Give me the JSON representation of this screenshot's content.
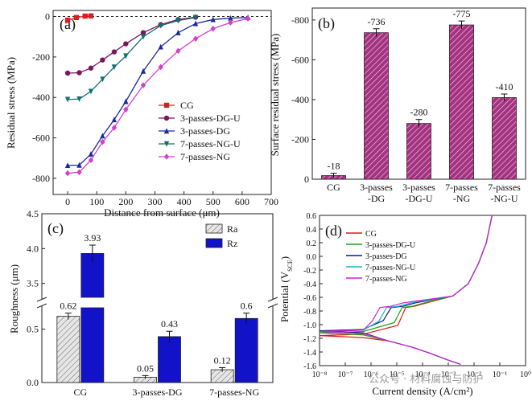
{
  "chart_data": [
    {
      "panel": "(a)",
      "type": "line",
      "xlabel": "Distance from surface (μm)",
      "ylabel": "Residual stress (MPa)",
      "xlim": [
        -50,
        700
      ],
      "ylim": [
        -880,
        30
      ],
      "xticks": [
        0,
        100,
        200,
        300,
        400,
        500,
        600,
        700
      ],
      "yticks": [
        0,
        -200,
        -400,
        -600,
        -800
      ],
      "xtick_labels": [
        "0",
        "100",
        "200",
        "300",
        "400",
        "500",
        "600",
        "700"
      ],
      "ytick_labels": [
        "0",
        "-200",
        "-400",
        "-600",
        "-800"
      ],
      "reference_line_y": 0,
      "legend_position": "bottom-left",
      "series": [
        {
          "name": "CG",
          "marker": "square",
          "color": "#d62020",
          "x": [
            0,
            30,
            60,
            80
          ],
          "y": [
            -18,
            -5,
            2,
            3
          ]
        },
        {
          "name": "3-passes-DG-U",
          "marker": "circle",
          "color": "#7a1560",
          "x": [
            0,
            40,
            80,
            120,
            160,
            200,
            260,
            320,
            380,
            440
          ],
          "y": [
            -280,
            -278,
            -255,
            -215,
            -175,
            -135,
            -80,
            -40,
            -15,
            -3
          ]
        },
        {
          "name": "3-passes-DG",
          "marker": "triangle-up",
          "color": "#1c2a99",
          "x": [
            0,
            40,
            80,
            120,
            160,
            200,
            260,
            320,
            380,
            440,
            500,
            560,
            620
          ],
          "y": [
            -736,
            -735,
            -680,
            -590,
            -510,
            -420,
            -270,
            -150,
            -80,
            -35,
            -15,
            -8,
            -5
          ]
        },
        {
          "name": "7-passes-NG-U",
          "marker": "triangle-down",
          "color": "#136f6f",
          "x": [
            0,
            40,
            80,
            120,
            160,
            200,
            260,
            320,
            380,
            440
          ],
          "y": [
            -410,
            -408,
            -370,
            -310,
            -250,
            -195,
            -100,
            -45,
            -20,
            -5
          ]
        },
        {
          "name": "7-passes-NG",
          "marker": "diamond",
          "color": "#d33fd3",
          "x": [
            0,
            40,
            80,
            120,
            160,
            200,
            260,
            320,
            380,
            440,
            500,
            560,
            620
          ],
          "y": [
            -775,
            -770,
            -710,
            -620,
            -550,
            -460,
            -340,
            -250,
            -170,
            -110,
            -60,
            -30,
            -10
          ]
        }
      ]
    },
    {
      "panel": "(b)",
      "type": "bar",
      "ylabel": "Surface residual stress (MPa)",
      "ylim": [
        0,
        -860
      ],
      "yticks": [
        0,
        -200,
        -400,
        -600,
        -800
      ],
      "ytick_labels": [
        "0",
        "-200",
        "-400",
        "-600",
        "-800"
      ],
      "categories": [
        "CG",
        "3-passes -DG",
        "3-passes -DG-U",
        "7-passes -NG",
        "7-passes -NG-U"
      ],
      "values": [
        -18,
        -736,
        -280,
        -775,
        -410
      ],
      "value_labels": [
        "-18",
        "-736",
        "-280",
        "-775",
        "-410"
      ],
      "errors": [
        12,
        20,
        20,
        20,
        18
      ],
      "bar_color": "#a4327f",
      "hatch": "diagonal"
    },
    {
      "panel": "(c)",
      "type": "bar",
      "ylabel": "Roughness (μm)",
      "broken_axis": true,
      "lower_ylim": [
        0,
        0.7
      ],
      "upper_ylim": [
        3.3,
        4.5
      ],
      "lower_yticks": [
        0.0,
        0.5
      ],
      "upper_yticks": [
        3.5,
        4.0,
        4.5
      ],
      "lower_ytick_labels": [
        "0.0",
        "0.5"
      ],
      "upper_ytick_labels": [
        "3.5",
        "4.0",
        "4.5"
      ],
      "categories": [
        "CG",
        "3-passes-DG",
        "7-passes-NG"
      ],
      "series": [
        {
          "name": "Ra",
          "values": [
            0.62,
            0.05,
            0.12
          ],
          "value_labels": [
            "0.62",
            "0.05",
            "0.12"
          ],
          "errors": [
            0.03,
            0.015,
            0.02
          ],
          "color": "#c8c8c8",
          "hatch": "diagonal"
        },
        {
          "name": "Rz",
          "values": [
            3.93,
            0.43,
            0.6
          ],
          "value_labels": [
            "3.93",
            "0.43",
            "0.6"
          ],
          "errors": [
            0.12,
            0.05,
            0.05
          ],
          "color": "#1212c8",
          "hatch": "none"
        }
      ],
      "legend_position": "top-right"
    },
    {
      "panel": "(d)",
      "type": "line",
      "xlabel": "Current density (A/cm²)",
      "ylabel": "Potential (V_SCE)",
      "xscale": "log",
      "xlim": [
        1e-08,
        1
      ],
      "ylim": [
        -1.6,
        0.6
      ],
      "xtick_labels": [
        "10⁻⁸",
        "10⁻⁷",
        "10⁻⁶",
        "10⁻⁵",
        "10⁻⁴",
        "10⁻³",
        "10⁻²",
        "10⁻¹",
        "10⁰"
      ],
      "ytick_labels": [
        "0.6",
        "0.4",
        "0.2",
        "0.0",
        "-0.2",
        "-0.4",
        "-0.6",
        "-0.8",
        "-1.0",
        "-1.2",
        "-1.4",
        "-1.6"
      ],
      "yticks": [
        0.6,
        0.4,
        0.2,
        0.0,
        -0.2,
        -0.4,
        -0.6,
        -0.8,
        -1.0,
        -1.2,
        -1.4,
        -1.6
      ],
      "legend_position": "top-left",
      "series": [
        {
          "name": "CG",
          "color": "#e21a1a",
          "ecorr": -1.16,
          "anodic_plateau_i": 2.2e-05,
          "passive_i": 5e-05
        },
        {
          "name": "3-passes-DG-U",
          "color": "#19a319",
          "ecorr": -1.12,
          "anodic_plateau_i": 1.6e-05,
          "passive_i": 4e-05
        },
        {
          "name": "3-passes-DG",
          "color": "#15157a",
          "ecorr": -1.09,
          "anodic_plateau_i": 6e-06,
          "passive_i": 1.8e-05
        },
        {
          "name": "7-passes-NG-U",
          "color": "#18b4c8",
          "ecorr": -1.1,
          "anodic_plateau_i": 4e-06,
          "passive_i": 1.2e-05
        },
        {
          "name": "7-passes-NG",
          "color": "#d11fd1",
          "ecorr": -1.1,
          "anodic_plateau_i": 2.2e-06,
          "passive_i": 6e-06
        }
      ]
    }
  ],
  "watermark": "公众号 · 材料腐蚀与防护"
}
